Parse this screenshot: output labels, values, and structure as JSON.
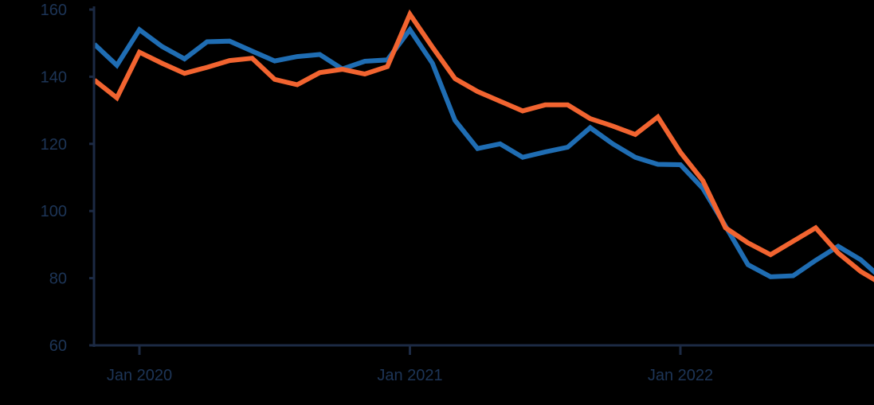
{
  "chart_data": {
    "type": "line",
    "title": "",
    "xlabel": "",
    "ylabel": "",
    "ylim": [
      60,
      160
    ],
    "yticks": [
      60,
      80,
      100,
      120,
      140,
      160
    ],
    "xticks": [
      {
        "label": "Jan 2020",
        "date": "2020-01"
      },
      {
        "label": "Jan 2021",
        "date": "2021-01"
      },
      {
        "label": "Jan 2022",
        "date": "2022-01"
      }
    ],
    "grid": false,
    "legend": "none",
    "x": [
      "2019-11",
      "2019-12",
      "2020-01",
      "2020-02",
      "2020-03",
      "2020-04",
      "2020-05",
      "2020-06",
      "2020-07",
      "2020-08",
      "2020-09",
      "2020-10",
      "2020-11",
      "2020-12",
      "2021-01",
      "2021-02",
      "2021-03",
      "2021-04",
      "2021-05",
      "2021-06",
      "2021-07",
      "2021-08",
      "2021-09",
      "2021-10",
      "2021-11",
      "2021-12",
      "2022-01",
      "2022-02",
      "2022-03",
      "2022-04",
      "2022-05",
      "2022-06",
      "2022-07",
      "2022-08",
      "2022-09",
      "2022-10"
    ],
    "series": [
      {
        "color": "#1f6db3",
        "values": [
          149.7,
          143.4,
          154,
          149,
          145.3,
          150.4,
          150.6,
          147.6,
          144.7,
          146,
          146.6,
          142.3,
          144.6,
          145,
          154,
          144,
          127,
          118.6,
          120,
          116,
          117.6,
          119,
          124.8,
          120,
          116,
          113.9,
          113.8,
          106.7,
          95.5,
          84,
          80.4,
          80.7,
          85.3,
          89.5,
          85.5,
          79.5
        ]
      },
      {
        "color": "#f26430",
        "values": [
          139,
          133.7,
          147.3,
          144,
          141,
          142.8,
          144.8,
          145.5,
          139.2,
          137.6,
          141.2,
          142.2,
          140.8,
          143,
          158.6,
          148.8,
          139.4,
          135.6,
          132.7,
          129.8,
          131.6,
          131.6,
          127.5,
          125.3,
          122.8,
          128,
          117.5,
          109,
          95,
          90.5,
          87,
          91,
          95,
          87.5,
          82,
          78
        ]
      }
    ]
  }
}
